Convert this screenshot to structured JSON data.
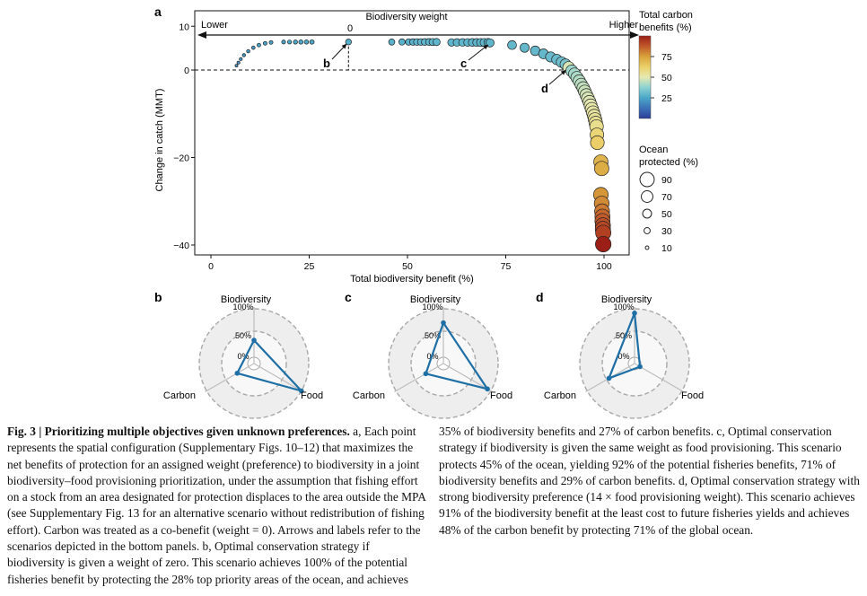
{
  "panel_a": {
    "label": "a",
    "weight_title": "Biodiversity weight",
    "arrow_left": "Lower",
    "arrow_right": "Higher",
    "zero_mark": "0",
    "xlabel": "Total biodiversity benefit (%)",
    "ylabel": "Change in catch (MMT)",
    "scenario_labels": {
      "b": "b",
      "c": "c",
      "d": "d"
    }
  },
  "colorbar": {
    "title": [
      "Total carbon",
      "benefits (%)"
    ],
    "ticks": [
      "75",
      "50",
      "25"
    ],
    "tick_values": [
      75,
      50,
      25
    ]
  },
  "size_legend": {
    "title": [
      "Ocean",
      "protected (%)"
    ],
    "labels": [
      "90",
      "70",
      "50",
      "30",
      "10"
    ],
    "values": [
      90,
      70,
      50,
      30,
      10
    ]
  },
  "chart_data": [
    {
      "type": "scatter",
      "title": "Biodiversity weight",
      "xlabel": "Total biodiversity benefit (%)",
      "ylabel": "Change in catch (MMT)",
      "xlim": [
        -4,
        101
      ],
      "ylim": [
        -42,
        12
      ],
      "xticks": [
        0,
        25,
        50,
        75,
        100
      ],
      "yticks": [
        10,
        0,
        -20,
        -40
      ],
      "x_tick_labels": [
        "0",
        "25",
        "50",
        "75",
        "100"
      ],
      "y_tick_labels": [
        "10",
        "0",
        "−20",
        "−40"
      ],
      "point_fields": [
        "biodiversity_pct",
        "catch_change_mmt",
        "carbon_pct",
        "ocean_protected_pct"
      ],
      "points": [
        [
          6.5,
          1.0,
          20,
          5
        ],
        [
          7.0,
          1.7,
          20,
          6
        ],
        [
          7.6,
          2.5,
          21,
          7
        ],
        [
          8.4,
          3.4,
          21,
          8
        ],
        [
          9.5,
          4.3,
          22,
          9
        ],
        [
          10.8,
          5.1,
          22,
          10
        ],
        [
          12.2,
          5.7,
          23,
          11
        ],
        [
          13.8,
          6.1,
          23,
          12
        ],
        [
          15.3,
          6.3,
          24,
          12
        ],
        [
          18.5,
          6.4,
          24,
          13
        ],
        [
          20.0,
          6.4,
          25,
          14
        ],
        [
          21.5,
          6.4,
          25,
          15
        ],
        [
          22.9,
          6.4,
          25,
          16
        ],
        [
          24.3,
          6.4,
          26,
          16
        ],
        [
          25.7,
          6.4,
          26,
          17
        ],
        [
          35.0,
          6.4,
          27,
          28
        ],
        [
          46.0,
          6.4,
          28,
          30
        ],
        [
          48.6,
          6.4,
          28,
          31
        ],
        [
          50.3,
          6.4,
          28,
          32
        ],
        [
          51.4,
          6.4,
          28,
          33
        ],
        [
          52.4,
          6.4,
          29,
          34
        ],
        [
          53.4,
          6.4,
          29,
          34
        ],
        [
          54.4,
          6.4,
          29,
          35
        ],
        [
          55.5,
          6.4,
          29,
          36
        ],
        [
          56.4,
          6.4,
          29,
          37
        ],
        [
          57.4,
          6.4,
          29,
          38
        ],
        [
          61.2,
          6.3,
          29,
          40
        ],
        [
          62.6,
          6.3,
          29,
          41
        ],
        [
          64.0,
          6.3,
          29,
          41
        ],
        [
          65.3,
          6.3,
          29,
          42
        ],
        [
          66.5,
          6.3,
          29,
          43
        ],
        [
          67.6,
          6.3,
          29,
          43
        ],
        [
          68.6,
          6.3,
          29,
          44
        ],
        [
          69.5,
          6.3,
          29,
          44
        ],
        [
          70.5,
          6.3,
          29,
          45
        ],
        [
          71.0,
          6.2,
          29,
          45
        ],
        [
          76.6,
          5.7,
          30,
          50
        ],
        [
          79.8,
          5.1,
          30,
          52
        ],
        [
          82.5,
          4.4,
          30,
          55
        ],
        [
          84.6,
          3.7,
          30,
          57
        ],
        [
          86.4,
          3.0,
          31,
          59
        ],
        [
          88.0,
          2.4,
          31,
          61
        ],
        [
          89.2,
          1.8,
          32,
          63
        ],
        [
          90.2,
          1.3,
          34,
          65
        ],
        [
          91.0,
          0.6,
          48,
          71
        ],
        [
          91.8,
          -0.2,
          40,
          72
        ],
        [
          92.5,
          -0.9,
          41,
          73
        ],
        [
          93.1,
          -1.7,
          42,
          74
        ],
        [
          93.7,
          -2.5,
          43,
          75
        ],
        [
          94.2,
          -3.3,
          44,
          76
        ],
        [
          94.7,
          -4.1,
          45,
          77
        ],
        [
          95.1,
          -4.9,
          46,
          78
        ],
        [
          95.5,
          -5.7,
          47,
          78
        ],
        [
          95.9,
          -6.5,
          48,
          79
        ],
        [
          96.3,
          -7.3,
          49,
          80
        ],
        [
          96.6,
          -8.1,
          50,
          81
        ],
        [
          96.9,
          -8.9,
          51,
          82
        ],
        [
          97.2,
          -9.7,
          52,
          82
        ],
        [
          97.5,
          -10.5,
          53,
          83
        ],
        [
          97.7,
          -11.3,
          54,
          84
        ],
        [
          97.9,
          -12.1,
          55,
          84
        ],
        [
          98.1,
          -12.9,
          56,
          85
        ],
        [
          98.2,
          -14.8,
          60,
          85
        ],
        [
          98.3,
          -16.6,
          63,
          86
        ],
        [
          99.2,
          -21.0,
          70,
          90
        ],
        [
          99.4,
          -22.5,
          72,
          91
        ],
        [
          99.2,
          -28.5,
          77,
          93
        ],
        [
          99.4,
          -30.5,
          79,
          94
        ],
        [
          99.5,
          -32.3,
          82,
          95
        ],
        [
          99.6,
          -33.5,
          85,
          96
        ],
        [
          99.6,
          -34.5,
          87,
          96
        ],
        [
          99.7,
          -35.5,
          89,
          97
        ],
        [
          99.7,
          -36.3,
          91,
          97
        ],
        [
          99.8,
          -37.2,
          93,
          98
        ],
        [
          99.8,
          -39.8,
          100,
          100
        ]
      ],
      "scenarios": {
        "b": [
          35,
          6.4
        ],
        "c": [
          71,
          6.2
        ],
        "d": [
          91,
          0.6
        ]
      }
    },
    {
      "type": "radar",
      "panel": "b",
      "axes": [
        "Biodiversity",
        "Food",
        "Carbon"
      ],
      "ring_labels": [
        "100%",
        "50%",
        "0%"
      ],
      "values": [
        35,
        100,
        27
      ]
    },
    {
      "type": "radar",
      "panel": "c",
      "axes": [
        "Biodiversity",
        "Food",
        "Carbon"
      ],
      "ring_labels": [
        "100%",
        "50%",
        "0%"
      ],
      "values": [
        71,
        92,
        29
      ]
    },
    {
      "type": "radar",
      "panel": "d",
      "axes": [
        "Biodiversity",
        "Food",
        "Carbon"
      ],
      "ring_labels": [
        "100%",
        "50%",
        "0%"
      ],
      "values": [
        91,
        0,
        48
      ]
    }
  ],
  "caption": {
    "lead": "Fig. 3 | Prioritizing multiple objectives given unknown preferences.",
    "text_a": " a, Each point represents the spatial configuration (Supplementary Figs. 10–12) that maximizes the net benefits of protection for an assigned weight (preference) to biodiversity in a joint biodiversity–food provisioning prioritization, under the assumption that fishing effort on a stock from an area designated for protection displaces to the area outside the MPA (see Supplementary Fig. 13 for an alternative scenario without redistribution of fishing effort). Carbon was treated as a co-benefit (weight = 0). Arrows and labels refer to the scenarios depicted in the bottom panels.",
    "text_b": " b, Optimal conservation strategy if biodiversity is given a weight of zero. This scenario achieves 100% of the potential fisheries benefit by protecting the 28% top priority areas of the ocean, and achieves 35% of biodiversity benefits and 27% of carbon benefits.",
    "text_c": " c, Optimal conservation strategy if biodiversity is given the same weight as food provisioning. This scenario protects 45% of the ocean, yielding 92% of the potential fisheries benefits, 71% of biodiversity benefits and 29% of carbon benefits.",
    "text_d": " d, Optimal conservation strategy with strong biodiversity preference (14 × food provisioning weight). This scenario achieves 91% of the biodiversity benefit at the least cost to future fisheries yields and achieves 48% of the carbon benefit by protecting 71% of the global ocean."
  }
}
